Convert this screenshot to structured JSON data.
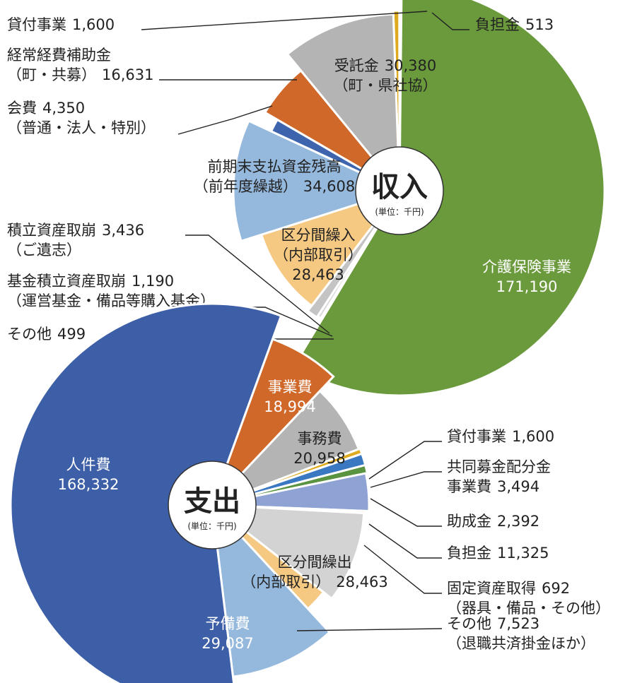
{
  "chart_data": [
    {
      "type": "pie",
      "title": "収入",
      "subtitle": "(単位：千円)",
      "categories": [
        "貸付事業",
        "負担金",
        "介護保険事業",
        "その他",
        "基金積立資産取崩",
        "積立資産取崩",
        "区分間繰入",
        "前期末支払資金残高",
        "会費",
        "経常経費補助金",
        "受託金"
      ],
      "notes": [
        null,
        null,
        null,
        null,
        "（運営基金・備品等購入基金）",
        "（ご遺志）",
        "（内部取引）",
        "（前年度繰越）",
        "（普通・法人・特別）",
        "（町・共募）",
        "（町・県社協）"
      ],
      "values": [
        1600,
        513,
        171190,
        499,
        1190,
        3436,
        28463,
        34608,
        4350,
        16631,
        30380
      ],
      "value_labels": [
        "1,600",
        "513",
        "171,190",
        "499",
        "1,190",
        "3,436",
        "28,463",
        "34,608",
        "4,350",
        "16,631",
        "30,380"
      ],
      "colors": [
        "#deaa1f",
        "#deaa1f",
        "#6a9a3c",
        "#ec9070",
        "#d9d9d9",
        "#c4c4c4",
        "#f6c983",
        "#95b8dd",
        "#3d64ad",
        "#d0682a",
        "#b4b4b4"
      ]
    },
    {
      "type": "pie",
      "title": "支出",
      "subtitle": "(単位：千円)",
      "categories": [
        "事業費",
        "事務費",
        "貸付事業",
        "共同募金配分金",
        "助成金",
        "負担金",
        "固定資産取得",
        "区分間繰出",
        "その他",
        "予備費",
        "人件費"
      ],
      "notes": [
        null,
        null,
        null,
        "事業費",
        null,
        null,
        "（器具・備品・その他）",
        "（内部取引）",
        "（退職共済掛金ほか）",
        null,
        null
      ],
      "values": [
        18994,
        20958,
        1600,
        3494,
        2392,
        11325,
        692,
        28463,
        7523,
        29087,
        168332
      ],
      "value_labels": [
        "18,994",
        "20,958",
        "1,600",
        "3,494",
        "2,392",
        "11,325",
        "692",
        "28,463",
        "7,523",
        "29,087",
        "168,332"
      ],
      "colors": [
        "#d0682a",
        "#b4b4b4",
        "#deaa1f",
        "#3a78c2",
        "#5a9440",
        "#8ea2d4",
        "#f0a080",
        "#d3d3d3",
        "#f6c983",
        "#95b8dd",
        "#3d5fa8"
      ]
    }
  ]
}
